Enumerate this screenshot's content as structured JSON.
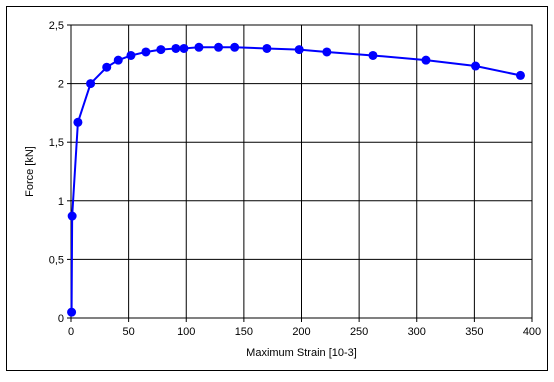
{
  "chart_data": {
    "type": "line",
    "title": "",
    "xlabel": "Maximum Strain [10-3]",
    "ylabel": "Force [kN]",
    "xlim": [
      0,
      400
    ],
    "ylim": [
      0,
      2.5
    ],
    "x_ticks": [
      "0",
      "50",
      "100",
      "150",
      "200",
      "250",
      "300",
      "350",
      "400"
    ],
    "y_ticks": [
      "0",
      "0,5",
      "1",
      "1,5",
      "2",
      "2,5"
    ],
    "grid": true,
    "legend": "none",
    "series": [
      {
        "color": "#0000ff",
        "marker": "circle",
        "points": [
          [
            0.5,
            0.05
          ],
          [
            1,
            0.87
          ],
          [
            6,
            1.67
          ],
          [
            17,
            2.0
          ],
          [
            31,
            2.14
          ],
          [
            41,
            2.2
          ],
          [
            52,
            2.24
          ],
          [
            65,
            2.27
          ],
          [
            78,
            2.29
          ],
          [
            91,
            2.3
          ],
          [
            98,
            2.3
          ],
          [
            111,
            2.31
          ],
          [
            128,
            2.31
          ],
          [
            142,
            2.31
          ],
          [
            170,
            2.3
          ],
          [
            198,
            2.29
          ],
          [
            222,
            2.27
          ],
          [
            262,
            2.24
          ],
          [
            308,
            2.2
          ],
          [
            351,
            2.15
          ],
          [
            390,
            2.07
          ]
        ]
      }
    ]
  },
  "colors": {
    "plot_bg": "#ffffff",
    "grid": "#000000",
    "frame": "#000000"
  }
}
